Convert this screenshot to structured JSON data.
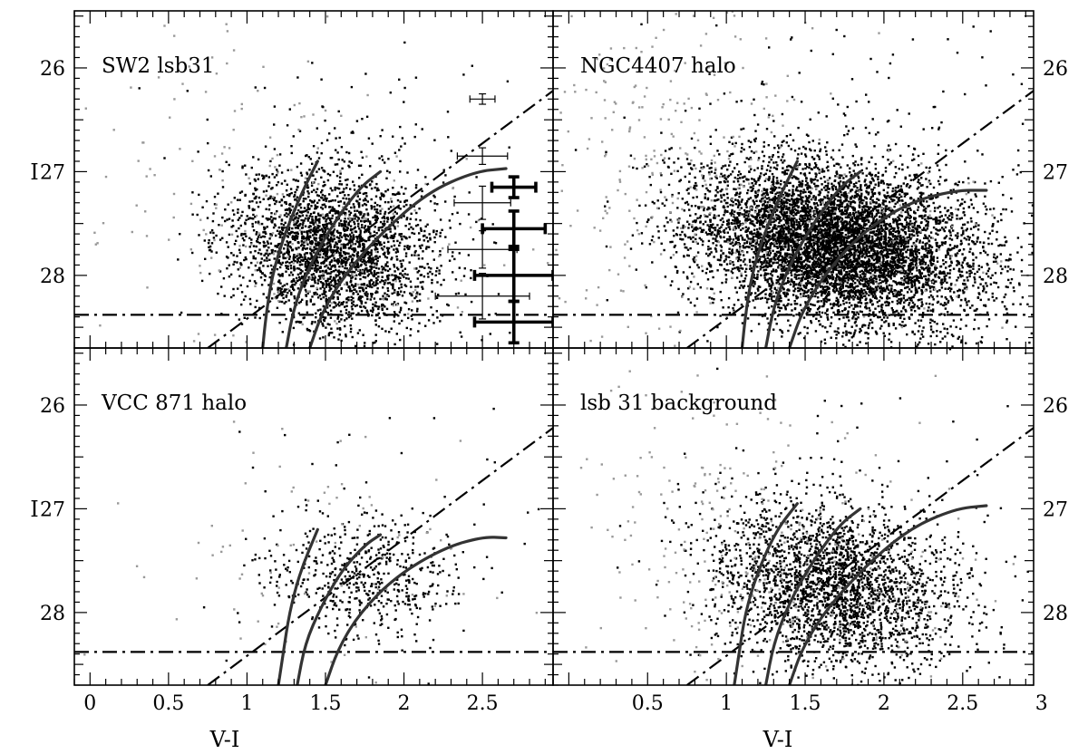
{
  "figure": {
    "shared_xlabel": "V-I",
    "shared_ylabel": "I"
  },
  "chart_data": [
    {
      "type": "scatter",
      "title": "SW2 lsb31",
      "xlabel": "",
      "ylabel": "I",
      "xlim": [
        -0.1,
        2.95
      ],
      "ylim": [
        28.7,
        25.45
      ],
      "y_inverted": true,
      "yticks": [
        26,
        27,
        28
      ],
      "grid": false,
      "point_colors": {
        "primary": "#000000",
        "rejected": "#999999"
      },
      "point_clouds": [
        {
          "name": "",
          "color": "#000000",
          "count": 2600,
          "mean": [
            1.55,
            27.75
          ],
          "sd": [
            0.33,
            0.38
          ],
          "corr": 0.15
        },
        {
          "name": "",
          "color": "#000000",
          "count": 160,
          "mean": [
            1.7,
            27.3
          ],
          "sd": [
            0.55,
            0.8
          ],
          "corr": 0.2
        },
        {
          "name": "",
          "color": "#999999",
          "count": 140,
          "mean": [
            0.9,
            27.2
          ],
          "sd": [
            0.45,
            0.8
          ],
          "corr": 0
        },
        {
          "name": "",
          "color": "#999999",
          "count": 80,
          "mean": [
            1.8,
            27.8
          ],
          "sd": [
            0.5,
            0.4
          ],
          "corr": 0
        }
      ],
      "completeness_limit_I": 28.38,
      "color_cut_line": [
        [
          0.75,
          28.7
        ],
        [
          2.95,
          26.22
        ]
      ],
      "isochrones": [
        [
          [
            1.1,
            28.7
          ],
          [
            1.12,
            28.4
          ],
          [
            1.16,
            28.0
          ],
          [
            1.24,
            27.6
          ],
          [
            1.35,
            27.2
          ],
          [
            1.45,
            26.9
          ]
        ],
        [
          [
            1.25,
            28.7
          ],
          [
            1.3,
            28.3
          ],
          [
            1.4,
            27.9
          ],
          [
            1.55,
            27.5
          ],
          [
            1.72,
            27.15
          ],
          [
            1.85,
            27.0
          ]
        ],
        [
          [
            1.4,
            28.7
          ],
          [
            1.48,
            28.35
          ],
          [
            1.62,
            28.0
          ],
          [
            1.85,
            27.6
          ],
          [
            2.15,
            27.2
          ],
          [
            2.45,
            27.0
          ],
          [
            2.65,
            26.97
          ]
        ]
      ],
      "error_bars": [
        {
          "style": "thin",
          "x": 2.5,
          "y": 26.3,
          "xerr": 0.08,
          "yerr": 0.05
        },
        {
          "style": "thin",
          "x": 2.5,
          "y": 26.85,
          "xerr": 0.16,
          "yerr": 0.08
        },
        {
          "style": "thin",
          "x": 2.5,
          "y": 27.3,
          "xerr": 0.18,
          "yerr": 0.16
        },
        {
          "style": "thin",
          "x": 2.5,
          "y": 27.75,
          "xerr": 0.22,
          "yerr": 0.18
        },
        {
          "style": "thin",
          "x": 2.5,
          "y": 28.2,
          "xerr": 0.3,
          "yerr": 0.22
        },
        {
          "style": "thick",
          "x": 2.7,
          "y": 27.15,
          "xerr": 0.14,
          "yerr": 0.1
        },
        {
          "style": "thick",
          "x": 2.7,
          "y": 27.55,
          "xerr": 0.2,
          "yerr": 0.17
        },
        {
          "style": "thick",
          "x": 2.7,
          "y": 28.0,
          "xerr": 0.25,
          "yerr": 0.25
        },
        {
          "style": "thick",
          "x": 2.7,
          "y": 28.45,
          "xerr": 0.25,
          "yerr": 0.2
        }
      ]
    },
    {
      "type": "scatter",
      "title": "NGC4407 halo",
      "xlabel": "",
      "ylabel": "",
      "xlim": [
        -0.1,
        2.95
      ],
      "ylim": [
        28.7,
        25.45
      ],
      "y_inverted": true,
      "yticks": [
        26,
        27,
        28
      ],
      "grid": false,
      "point_colors": {
        "primary": "#000000",
        "rejected": "#999999"
      },
      "point_clouds": [
        {
          "name": "",
          "color": "#000000",
          "count": 6500,
          "mean": [
            1.7,
            27.7
          ],
          "sd": [
            0.45,
            0.38
          ],
          "corr": 0.25
        },
        {
          "name": "",
          "color": "#000000",
          "count": 300,
          "mean": [
            2.0,
            27.2
          ],
          "sd": [
            0.6,
            0.8
          ],
          "corr": 0.2
        },
        {
          "name": "",
          "color": "#999999",
          "count": 320,
          "mean": [
            0.7,
            27.0
          ],
          "sd": [
            0.5,
            0.85
          ],
          "corr": 0
        },
        {
          "name": "",
          "color": "#999999",
          "count": 120,
          "mean": [
            1.9,
            27.7
          ],
          "sd": [
            0.5,
            0.4
          ],
          "corr": 0
        }
      ],
      "completeness_limit_I": 28.38,
      "color_cut_line": [
        [
          0.75,
          28.7
        ],
        [
          2.95,
          26.22
        ]
      ],
      "isochrones": [
        [
          [
            1.1,
            28.7
          ],
          [
            1.12,
            28.4
          ],
          [
            1.16,
            28.0
          ],
          [
            1.24,
            27.6
          ],
          [
            1.35,
            27.2
          ],
          [
            1.45,
            26.9
          ]
        ],
        [
          [
            1.25,
            28.7
          ],
          [
            1.3,
            28.3
          ],
          [
            1.4,
            27.9
          ],
          [
            1.55,
            27.5
          ],
          [
            1.72,
            27.15
          ],
          [
            1.85,
            27.0
          ]
        ],
        [
          [
            1.4,
            28.7
          ],
          [
            1.48,
            28.35
          ],
          [
            1.62,
            28.0
          ],
          [
            1.85,
            27.6
          ],
          [
            2.15,
            27.3
          ],
          [
            2.45,
            27.18
          ],
          [
            2.65,
            27.18
          ]
        ]
      ],
      "error_bars": []
    },
    {
      "type": "scatter",
      "title": "VCC 871 halo",
      "xlabel": "V-I",
      "ylabel": "I",
      "xlim": [
        -0.1,
        2.95
      ],
      "ylim": [
        28.7,
        25.45
      ],
      "y_inverted": true,
      "yticks": [
        26,
        27,
        28
      ],
      "xticks": [
        0,
        0.5,
        1,
        1.5,
        2,
        2.5
      ],
      "xtick_labels": [
        "0",
        "0.5",
        "1",
        "1.5",
        "2",
        "2.5"
      ],
      "grid": false,
      "point_colors": {
        "primary": "#000000",
        "rejected": "#999999"
      },
      "point_clouds": [
        {
          "name": "",
          "color": "#000000",
          "count": 520,
          "mean": [
            1.75,
            27.65
          ],
          "sd": [
            0.3,
            0.3
          ],
          "corr": 0.1
        },
        {
          "name": "",
          "color": "#000000",
          "count": 50,
          "mean": [
            1.8,
            27.2
          ],
          "sd": [
            0.55,
            0.8
          ],
          "corr": 0
        },
        {
          "name": "",
          "color": "#999999",
          "count": 80,
          "mean": [
            1.3,
            27.4
          ],
          "sd": [
            0.55,
            0.6
          ],
          "corr": 0
        }
      ],
      "completeness_limit_I": 28.38,
      "color_cut_line": [
        [
          0.75,
          28.7
        ],
        [
          2.95,
          26.22
        ]
      ],
      "isochrones": [
        [
          [
            1.2,
            28.7
          ],
          [
            1.23,
            28.4
          ],
          [
            1.27,
            28.0
          ],
          [
            1.34,
            27.6
          ],
          [
            1.45,
            27.2
          ]
        ],
        [
          [
            1.32,
            28.7
          ],
          [
            1.37,
            28.3
          ],
          [
            1.47,
            27.95
          ],
          [
            1.6,
            27.6
          ],
          [
            1.75,
            27.35
          ],
          [
            1.85,
            27.25
          ]
        ],
        [
          [
            1.5,
            28.7
          ],
          [
            1.58,
            28.35
          ],
          [
            1.72,
            28.0
          ],
          [
            1.95,
            27.65
          ],
          [
            2.25,
            27.38
          ],
          [
            2.5,
            27.27
          ],
          [
            2.65,
            27.28
          ]
        ]
      ],
      "error_bars": []
    },
    {
      "type": "scatter",
      "title": "lsb 31 background",
      "xlabel": "V-I",
      "ylabel": "",
      "xlim": [
        -0.1,
        2.95
      ],
      "ylim": [
        28.7,
        25.45
      ],
      "y_inverted": true,
      "yticks": [
        26,
        27,
        28
      ],
      "xticks": [
        0.5,
        1,
        1.5,
        2,
        2.5,
        3
      ],
      "xtick_labels": [
        "0.5",
        "1",
        "1.5",
        "2",
        "2.5",
        "3"
      ],
      "grid": false,
      "point_colors": {
        "primary": "#000000",
        "rejected": "#999999"
      },
      "point_clouds": [
        {
          "name": "",
          "color": "#000000",
          "count": 2500,
          "mean": [
            1.7,
            27.75
          ],
          "sd": [
            0.38,
            0.38
          ],
          "corr": 0.2
        },
        {
          "name": "",
          "color": "#000000",
          "count": 120,
          "mean": [
            1.9,
            27.3
          ],
          "sd": [
            0.6,
            0.8
          ],
          "corr": 0.2
        },
        {
          "name": "",
          "color": "#999999",
          "count": 230,
          "mean": [
            1.0,
            27.2
          ],
          "sd": [
            0.5,
            0.8
          ],
          "corr": 0
        },
        {
          "name": "",
          "color": "#999999",
          "count": 100,
          "mean": [
            1.9,
            27.8
          ],
          "sd": [
            0.5,
            0.4
          ],
          "corr": 0
        }
      ],
      "completeness_limit_I": 28.38,
      "color_cut_line": [
        [
          0.75,
          28.7
        ],
        [
          2.95,
          26.22
        ]
      ],
      "isochrones": [
        [
          [
            1.05,
            28.7
          ],
          [
            1.08,
            28.4
          ],
          [
            1.12,
            28.0
          ],
          [
            1.2,
            27.6
          ],
          [
            1.32,
            27.2
          ],
          [
            1.45,
            26.95
          ]
        ],
        [
          [
            1.25,
            28.7
          ],
          [
            1.3,
            28.3
          ],
          [
            1.4,
            27.9
          ],
          [
            1.55,
            27.5
          ],
          [
            1.72,
            27.15
          ],
          [
            1.85,
            27.0
          ]
        ],
        [
          [
            1.4,
            28.7
          ],
          [
            1.48,
            28.35
          ],
          [
            1.62,
            28.0
          ],
          [
            1.85,
            27.6
          ],
          [
            2.15,
            27.2
          ],
          [
            2.45,
            27.0
          ],
          [
            2.65,
            26.97
          ]
        ]
      ],
      "error_bars": []
    }
  ]
}
